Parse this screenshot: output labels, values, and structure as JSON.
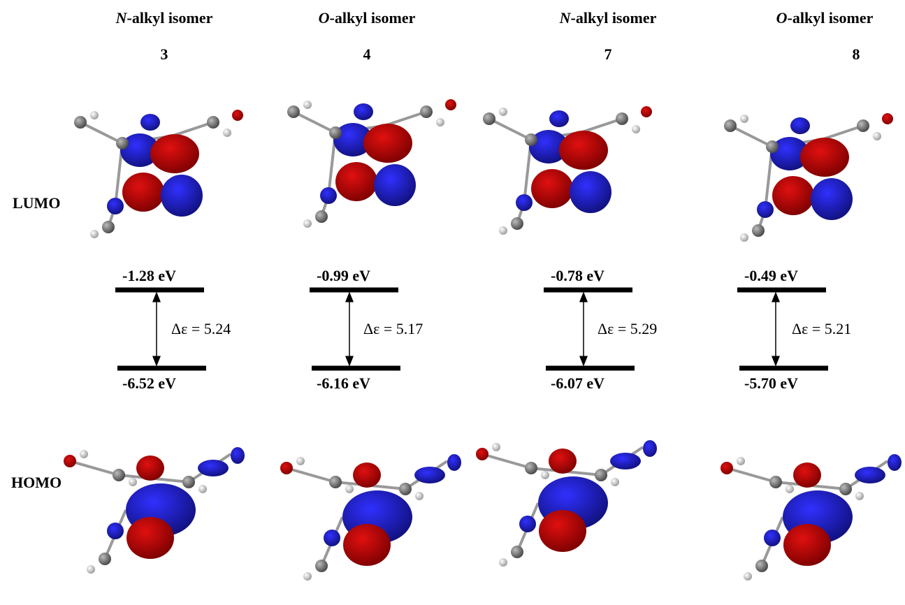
{
  "row_labels": {
    "lumo": "LUMO",
    "homo": "HOMO"
  },
  "columns": [
    {
      "isomer_prefix": "N",
      "isomer_suffix": "-alkyl isomer",
      "compound": "3",
      "lumo_energy": "-1.28 eV",
      "homo_energy": "-6.52 eV",
      "gap": "Δε = 5.24"
    },
    {
      "isomer_prefix": "O",
      "isomer_suffix": "-alkyl isomer",
      "compound": "4",
      "lumo_energy": "-0.99 eV",
      "homo_energy": "-6.16 eV",
      "gap": "Δε = 5.17"
    },
    {
      "isomer_prefix": "N",
      "isomer_suffix": "-alkyl isomer",
      "compound": "7",
      "lumo_energy": "-0.78 eV",
      "homo_energy": "-6.07 eV",
      "gap": "Δε = 5.29"
    },
    {
      "isomer_prefix": "O",
      "isomer_suffix": "-alkyl isomer",
      "compound": "8",
      "lumo_energy": "-0.49 eV",
      "homo_energy": "-5.70 eV",
      "gap": "Δε = 5.21"
    }
  ]
}
